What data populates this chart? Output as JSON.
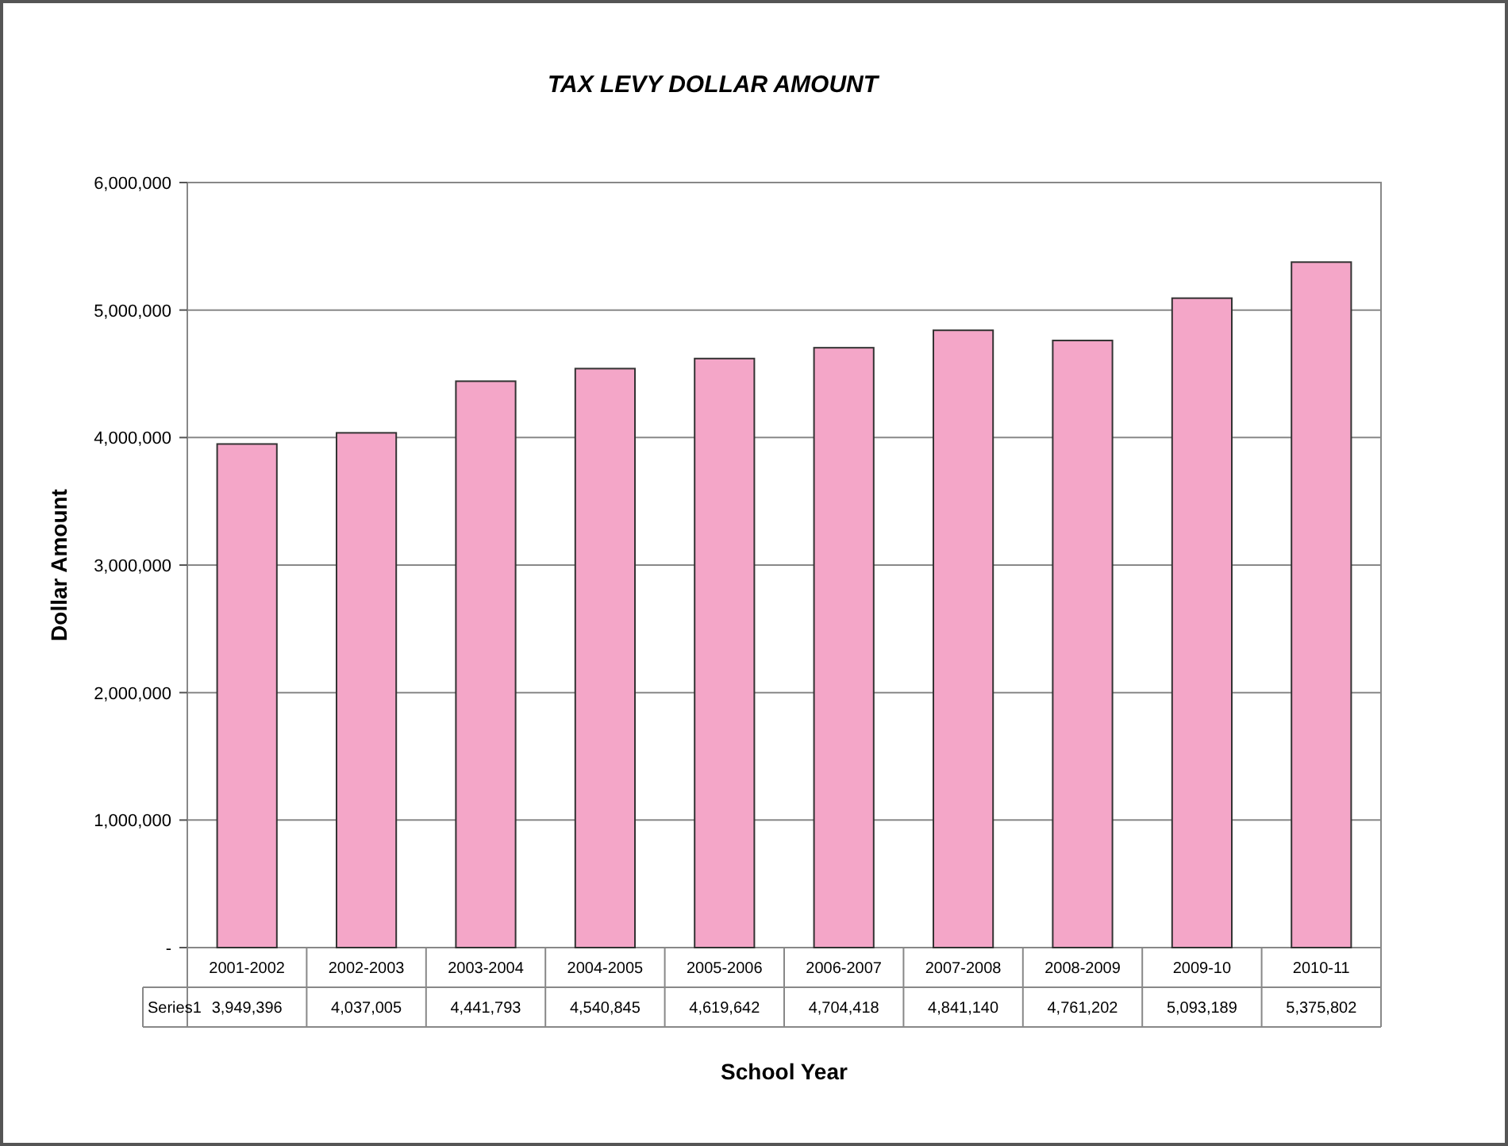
{
  "chart_data": {
    "type": "bar",
    "title": "TAX LEVY DOLLAR AMOUNT",
    "xlabel": "School Year",
    "ylabel": "Dollar Amount",
    "categories": [
      "2001-2002",
      "2002-2003",
      "2003-2004",
      "2004-2005",
      "2005-2006",
      "2006-2007",
      "2007-2008",
      "2008-2009",
      "2009-10",
      "2010-11"
    ],
    "series": [
      {
        "name": "Series1",
        "color": "#f4a6c8",
        "values": [
          3949396,
          4037005,
          4441793,
          4540845,
          4619642,
          4704418,
          4841140,
          4761202,
          5093189,
          5375802
        ],
        "value_labels": [
          "3,949,396",
          "4,037,005",
          "4,441,793",
          "4,540,845",
          "4,619,642",
          "4,704,418",
          "4,841,140",
          "4,761,202",
          "5,093,189",
          "5,375,802"
        ]
      }
    ],
    "ylim": [
      0,
      6000000
    ],
    "yticks": [
      {
        "value": 0,
        "label": "-"
      },
      {
        "value": 1000000,
        "label": "1,000,000"
      },
      {
        "value": 2000000,
        "label": "2,000,000"
      },
      {
        "value": 3000000,
        "label": "3,000,000"
      },
      {
        "value": 4000000,
        "label": "4,000,000"
      },
      {
        "value": 5000000,
        "label": "5,000,000"
      },
      {
        "value": 6000000,
        "label": "6,000,000"
      }
    ],
    "grid": "y"
  }
}
